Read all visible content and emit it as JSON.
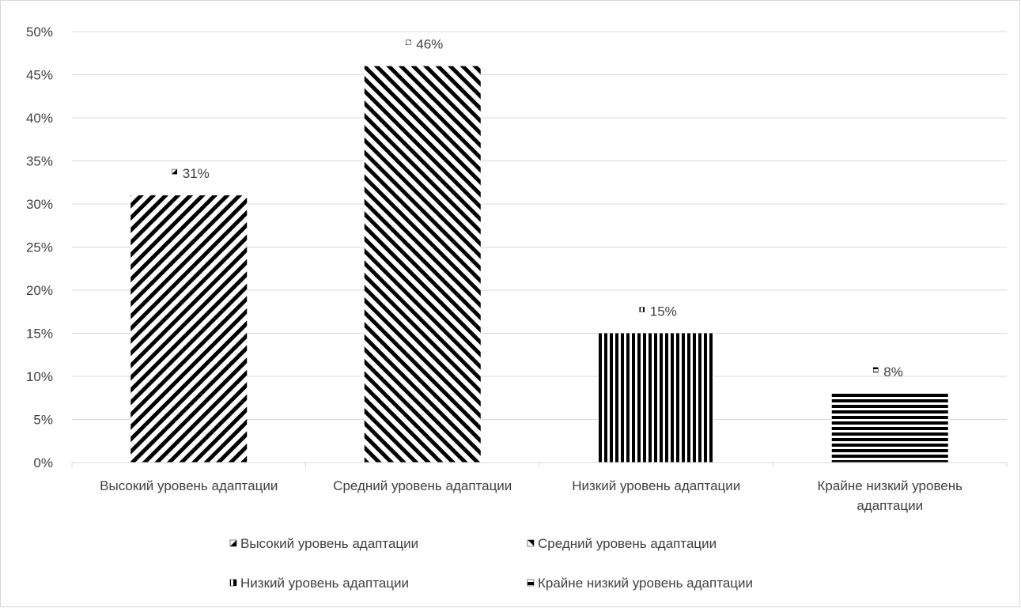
{
  "chart_data": {
    "type": "bar",
    "categories": [
      "Высокий уровень адаптации",
      "Средний уровень адаптации",
      "Низкий уровень адаптации",
      "Крайне низкий уровень адаптации"
    ],
    "category_label_lines": [
      [
        "Высокий уровень адаптации"
      ],
      [
        "Средний уровень адаптации"
      ],
      [
        "Низкий уровень адаптации"
      ],
      [
        "Крайне низкий уровень",
        "адаптации"
      ]
    ],
    "values": [
      31,
      46,
      15,
      8
    ],
    "data_labels": [
      "31%",
      "46%",
      "15%",
      "8%"
    ],
    "patterns": [
      "backslash-hatch",
      "slash-hatch",
      "vertical-stripes",
      "horizontal-stripes"
    ],
    "legend": [
      "Высокий уровень адаптации",
      "Средний уровень адаптации",
      "Низкий уровень адаптации",
      "Крайне низкий уровень адаптации"
    ],
    "legend_position": "bottom",
    "yticks": [
      "0%",
      "5%",
      "10%",
      "15%",
      "20%",
      "25%",
      "30%",
      "35%",
      "40%",
      "45%",
      "50%"
    ],
    "ylim": [
      0,
      50
    ],
    "grid": true,
    "colors": {
      "fill": "#000000",
      "background": "#ffffff",
      "grid": "#d9d9d9",
      "text": "#404040"
    }
  }
}
